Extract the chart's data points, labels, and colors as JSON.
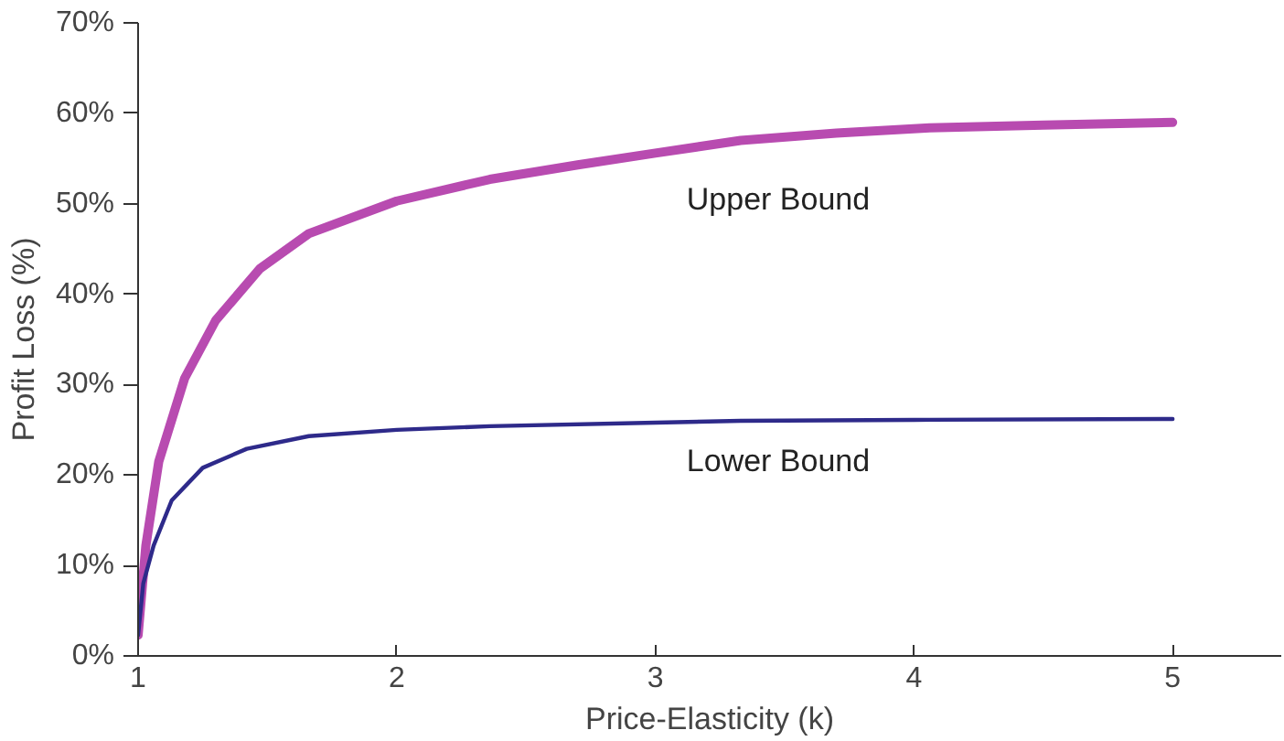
{
  "chart_data": {
    "type": "line",
    "xlabel": "Price-Elasticity (k)",
    "ylabel": "Profit Loss (%)",
    "xlim": [
      1,
      5.42
    ],
    "xticks": [
      1,
      2,
      3,
      4,
      5
    ],
    "ylim": [
      0,
      70
    ],
    "yticks": [
      {
        "value": 0,
        "label": "0%"
      },
      {
        "value": 10,
        "label": "10%"
      },
      {
        "value": 20,
        "label": "20%"
      },
      {
        "value": 30,
        "label": "30%"
      },
      {
        "value": 40,
        "label": "40%"
      },
      {
        "value": 50,
        "label": "50%"
      },
      {
        "value": 60,
        "label": "60%"
      },
      {
        "value": 70,
        "label": "70%"
      }
    ],
    "grid": false,
    "legend": false,
    "marker": "none",
    "line_style": "solid",
    "series": [
      {
        "name": "Upper Bound",
        "color": "#b84bb0",
        "x": [
          1.0,
          1.03,
          1.08,
          1.18,
          1.3,
          1.47,
          1.66,
          2.0,
          2.36,
          2.7,
          3.0,
          3.33,
          3.7,
          4.06,
          4.5,
          5.0
        ],
        "values": [
          2.3,
          12.2,
          21.5,
          30.7,
          37.1,
          42.8,
          46.7,
          50.3,
          52.7,
          54.3,
          55.6,
          57.0,
          57.8,
          58.4,
          58.7,
          59.0
        ]
      },
      {
        "name": "Lower Bound",
        "color": "#2e2a8a",
        "x": [
          1.0,
          1.02,
          1.06,
          1.13,
          1.25,
          1.42,
          1.66,
          2.0,
          2.36,
          3.0,
          3.33,
          4.0,
          5.0
        ],
        "values": [
          2.3,
          8.0,
          12.2,
          17.2,
          20.8,
          22.9,
          24.3,
          25.0,
          25.4,
          25.8,
          26.0,
          26.1,
          26.2
        ]
      }
    ]
  }
}
